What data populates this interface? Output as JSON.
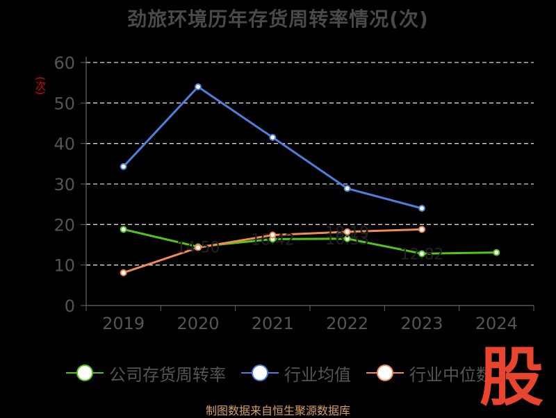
{
  "chart_data": {
    "type": "line",
    "title": "劲旅环境历年存货周转率情况(次)",
    "ylabel": "(次)",
    "categories": [
      "2019",
      "2020",
      "2021",
      "2022",
      "2023",
      "2024"
    ],
    "ylim": [
      0,
      60
    ],
    "yticks": [
      "0",
      "10",
      "20",
      "30",
      "40",
      "50",
      "60"
    ],
    "grid": true,
    "legend_position": "bottom",
    "series": [
      {
        "name": "公司存货周转率",
        "color": "#52c41a",
        "values": [
          18.8,
          14.5,
          16.4,
          16.5,
          12.8,
          13.1
        ]
      },
      {
        "name": "行业均值",
        "color": "#4f7fdb",
        "values": [
          34.3,
          54.0,
          41.5,
          28.9,
          24.0,
          null
        ]
      },
      {
        "name": "行业中位数",
        "color": "#f08c5a",
        "values": [
          8.1,
          14.3,
          17.4,
          18.2,
          18.8,
          null
        ]
      }
    ],
    "data_labels": [
      "14.50",
      "16.42",
      "16.53",
      "12.82",
      "18.19"
    ]
  },
  "watermark": "股",
  "source": "制图数据来自恒生聚源数据库"
}
